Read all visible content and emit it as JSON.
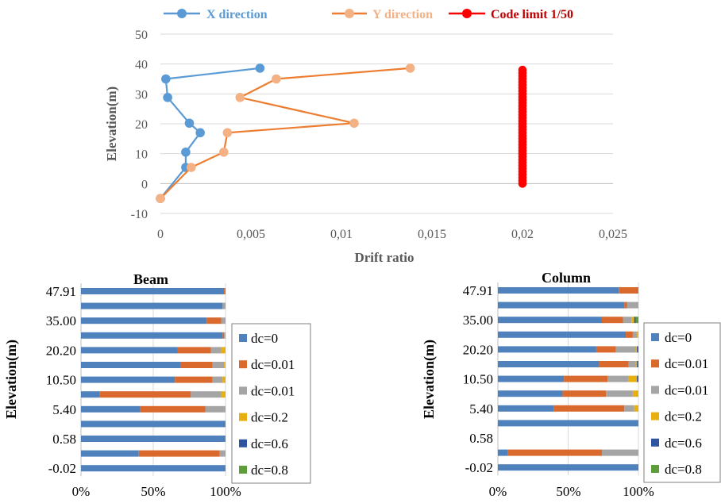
{
  "chart_data": [
    {
      "type": "line",
      "xlabel": "Drift ratio",
      "ylabel": "Elevation(m)",
      "xlim": [
        0,
        0.025
      ],
      "ylim": [
        -10,
        50
      ],
      "x_ticks": [
        "0",
        "0,005",
        "0,01",
        "0,015",
        "0,02",
        "0,025"
      ],
      "y_ticks": [
        "-10",
        "0",
        "10",
        "20",
        "30",
        "40",
        "50"
      ],
      "grid": "horizontal",
      "legend_position": "top",
      "series": [
        {
          "name": "X direction",
          "color": "#5B9BD5",
          "marker_color": "#5B9BD5",
          "x": [
            0.0055,
            0.0003,
            0.0004,
            0.0016,
            0.0022,
            0.0014,
            0.0014,
            0.0
          ],
          "y": [
            38.6,
            35.0,
            28.8,
            20.2,
            17.0,
            10.5,
            5.4,
            -5.0
          ]
        },
        {
          "name": "Y direction",
          "color": "#ED7D31",
          "marker_color": "#F4B183",
          "x": [
            0.0138,
            0.0064,
            0.0044,
            0.0107,
            0.0037,
            0.0035,
            0.0017,
            0.0
          ],
          "y": [
            38.6,
            35.0,
            28.8,
            20.2,
            17.0,
            10.5,
            5.4,
            -5.0
          ]
        },
        {
          "name": "Code limit 1/50",
          "color": "#FF0000",
          "marker_color": "#FF0000",
          "x": [
            0.02,
            0.02,
            0.02,
            0.02,
            0.02,
            0.02,
            0.02,
            0.02,
            0.02,
            0.02,
            0.02,
            0.02,
            0.02,
            0.02,
            0.02,
            0.02,
            0.02,
            0.02,
            0.02,
            0.02,
            0.02,
            0.02,
            0.02,
            0.02,
            0.02,
            0.02,
            0.02,
            0.02,
            0.02,
            0.02,
            0.02,
            0.02,
            0.02,
            0.02,
            0.02,
            0.02,
            0.02,
            0.02,
            0.02
          ],
          "y": [
            0,
            1,
            2,
            3,
            4,
            5,
            6,
            7,
            8,
            9,
            10,
            11,
            12,
            13,
            14,
            15,
            16,
            17,
            18,
            19,
            20,
            21,
            22,
            23,
            24,
            25,
            26,
            27,
            28,
            29,
            30,
            31,
            32,
            33,
            34,
            35,
            36,
            37,
            38
          ]
        }
      ]
    },
    {
      "type": "bar",
      "orientation": "horizontal-stacked-percent",
      "title": "Beam",
      "ylabel": "Elevation(m)",
      "y_tick_labels": [
        "47.91",
        "35.00",
        "20.20",
        "10.50",
        "5.40",
        "0.58",
        "-0.02"
      ],
      "x_ticks": [
        "0%",
        "50%",
        "100%"
      ],
      "legend_position": "right",
      "series": [
        {
          "name": "dc=0",
          "color": "#4F81BD",
          "values": [
            99,
            98,
            87,
            98,
            67,
            69,
            65,
            13,
            41,
            100,
            100,
            40,
            100
          ]
        },
        {
          "name": "dc=0.01",
          "color": "#D9692C",
          "values": [
            1,
            0,
            10,
            1,
            23,
            22,
            26,
            63,
            45,
            0,
            0,
            56,
            0
          ]
        },
        {
          "name": "dc=0.01",
          "color": "#A5A5A5",
          "values": [
            0,
            2,
            3,
            1,
            7,
            8,
            7,
            21,
            14,
            0,
            0,
            4,
            0
          ]
        },
        {
          "name": "dc=0.2",
          "color": "#E8B00E",
          "values": [
            0,
            0,
            0,
            0,
            3,
            1,
            2,
            3,
            0,
            0,
            0,
            0,
            0
          ]
        },
        {
          "name": "dc=0.6",
          "color": "#2E54A0",
          "values": [
            0,
            0,
            0,
            0,
            0,
            0,
            0,
            0,
            0,
            0,
            0,
            0,
            0
          ]
        },
        {
          "name": "dc=0.8",
          "color": "#5D9E3A",
          "values": [
            0,
            0,
            0,
            0,
            0,
            0,
            0,
            0,
            0,
            0,
            0,
            0,
            0
          ]
        }
      ]
    },
    {
      "type": "bar",
      "orientation": "horizontal-stacked-percent",
      "title": "Column",
      "ylabel": "Elevation(m)",
      "y_tick_labels": [
        "47.91",
        "35.00",
        "20.20",
        "10.50",
        "5.40",
        "0.58",
        "-0.02"
      ],
      "x_ticks": [
        "0%",
        "50%",
        "100%"
      ],
      "legend_position": "right",
      "series": [
        {
          "name": "dc=0",
          "color": "#4F81BD",
          "values": [
            86,
            90,
            74,
            91,
            70,
            72,
            47,
            46,
            40,
            100,
            0,
            7,
            100
          ]
        },
        {
          "name": "dc=0.01",
          "color": "#D9692C",
          "values": [
            14,
            2,
            15,
            5,
            14,
            21,
            31,
            31,
            50,
            0,
            0,
            67,
            0
          ]
        },
        {
          "name": "dc=0.01",
          "color": "#A5A5A5",
          "values": [
            0,
            8,
            6,
            3,
            14,
            5,
            15,
            19,
            7,
            0,
            0,
            26,
            0
          ]
        },
        {
          "name": "dc=0.2",
          "color": "#E8B00E",
          "values": [
            0,
            0,
            2,
            1,
            1,
            1,
            6,
            4,
            3,
            0,
            0,
            0,
            0
          ]
        },
        {
          "name": "dc=0.6",
          "color": "#2E54A0",
          "values": [
            0,
            0,
            1,
            0,
            1,
            1,
            1,
            0,
            0,
            0,
            0,
            0,
            0
          ]
        },
        {
          "name": "dc=0.8",
          "color": "#5D9E3A",
          "values": [
            0,
            0,
            2,
            0,
            0,
            0,
            0,
            0,
            0,
            0,
            0,
            0,
            0
          ]
        }
      ]
    }
  ]
}
